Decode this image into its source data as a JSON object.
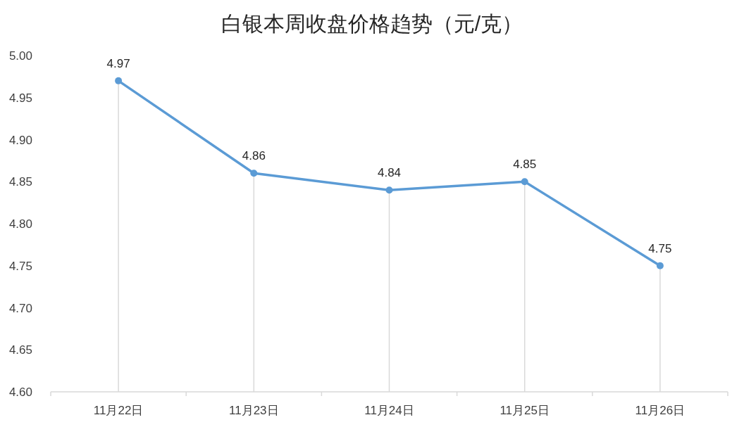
{
  "chart_data": {
    "type": "line",
    "title": "白银本周收盘价格趋势（元/克）",
    "categories": [
      "11月22日",
      "11月23日",
      "11月24日",
      "11月25日",
      "11月26日"
    ],
    "series": [
      {
        "color": "#5b9bd5",
        "values": [
          4.97,
          4.86,
          4.84,
          4.85,
          4.75
        ]
      }
    ],
    "ylim": [
      4.6,
      5.0
    ],
    "yticks": [
      {
        "value": 4.6,
        "label": "4.60"
      },
      {
        "value": 4.65,
        "label": "4.65"
      },
      {
        "value": 4.7,
        "label": "4.70"
      },
      {
        "value": 4.75,
        "label": "4.75"
      },
      {
        "value": 4.8,
        "label": "4.80"
      },
      {
        "value": 4.85,
        "label": "4.85"
      },
      {
        "value": 4.9,
        "label": "4.90"
      },
      {
        "value": 4.95,
        "label": "4.95"
      },
      {
        "value": 5.0,
        "label": "5.00"
      }
    ],
    "data_labels": true,
    "marker": "circle",
    "line_style": "solid"
  }
}
